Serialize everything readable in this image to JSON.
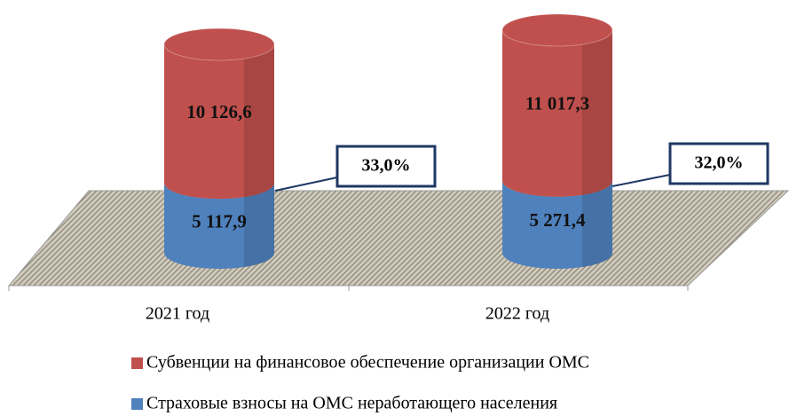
{
  "chart_data": {
    "type": "bar3d-stacked",
    "categories": [
      "2021 год",
      "2022 год"
    ],
    "series": [
      {
        "name": "Страховые взносы на ОМС неработающего населения",
        "color": "#4f81bd",
        "values": [
          5117.9,
          5271.4
        ],
        "value_labels": [
          "5 117,9",
          "5 271,4"
        ]
      },
      {
        "name": "Субвенции на финансовое обеспечение организации ОМС",
        "color": "#c0504d",
        "values": [
          10126.6,
          11017.3
        ],
        "value_labels": [
          "10 126,6",
          "11 017,3"
        ]
      }
    ],
    "annotations": [
      "33,0%",
      "32,0%"
    ],
    "legend": "bottom"
  }
}
